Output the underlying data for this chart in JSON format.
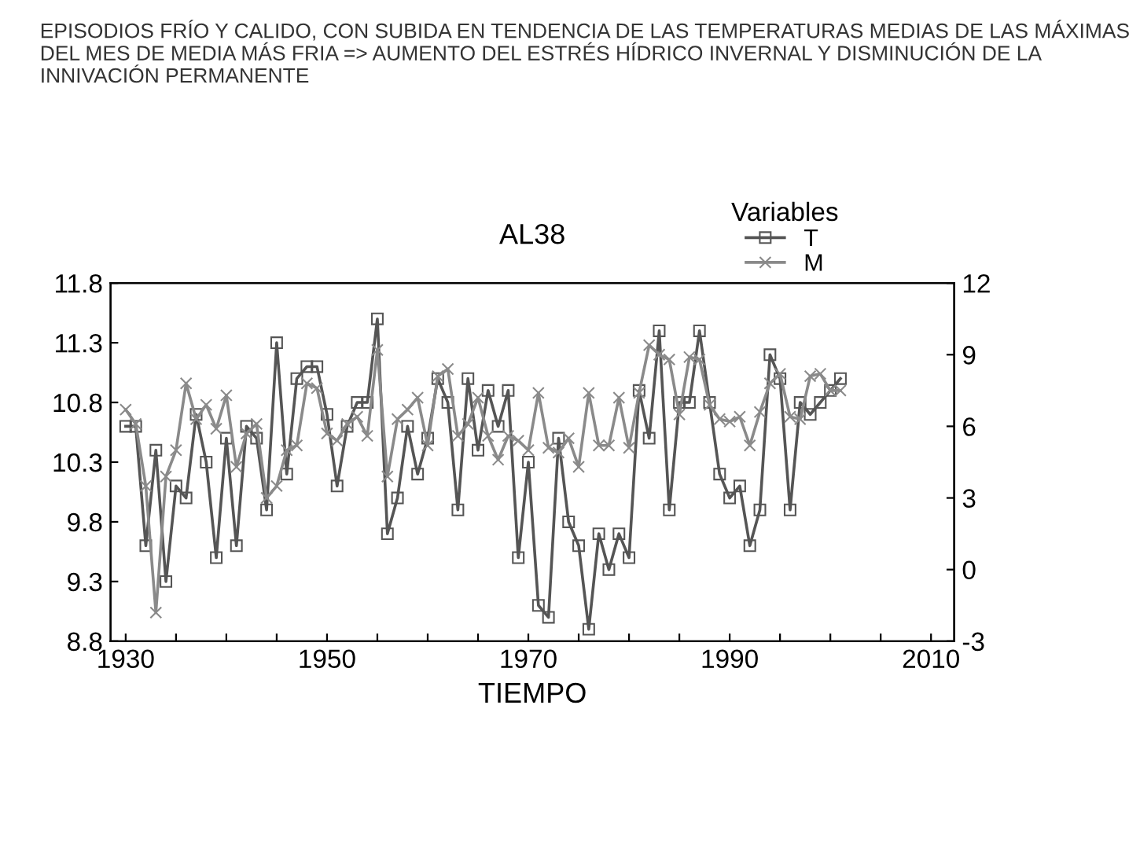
{
  "chart_data": {
    "type": "line",
    "title": "AL38",
    "xlabel": "TIEMPO",
    "legend_title": "Variables",
    "annotations": [
      "EPISODIOS FRÍO Y CALIDO, CON SUBIDA EN TENDENCIA DE LAS TEMPERATURAS MEDIAS DE LAS MÁXIMAS DEL MES DE MEDIA MÁS FRIA => AUMENTO DEL ESTRÉS HÍDRICO INVERNAL Y DISMINUCIÓN DE LA INNIVACIÓN PERMANENTE"
    ],
    "x": [
      1930,
      1931,
      1932,
      1933,
      1934,
      1935,
      1936,
      1937,
      1938,
      1939,
      1940,
      1941,
      1942,
      1943,
      1944,
      1945,
      1946,
      1947,
      1948,
      1949,
      1950,
      1951,
      1952,
      1953,
      1954,
      1955,
      1956,
      1957,
      1958,
      1959,
      1960,
      1961,
      1962,
      1963,
      1964,
      1965,
      1966,
      1967,
      1968,
      1969,
      1970,
      1971,
      1972,
      1973,
      1974,
      1975,
      1976,
      1977,
      1978,
      1979,
      1980,
      1981,
      1982,
      1983,
      1984,
      1985,
      1986,
      1987,
      1988,
      1989,
      1990,
      1991,
      1992,
      1993,
      1994,
      1995,
      1996,
      1997,
      1998,
      1999,
      2000,
      2001
    ],
    "series": [
      {
        "name": "T",
        "color": "#555555",
        "marker": "square",
        "values": [
          10.6,
          10.6,
          9.6,
          10.4,
          9.3,
          10.1,
          10.0,
          10.7,
          10.3,
          9.5,
          10.5,
          9.6,
          10.6,
          10.5,
          9.9,
          11.3,
          10.2,
          11.0,
          11.1,
          11.1,
          10.7,
          10.1,
          10.6,
          10.8,
          10.8,
          11.5,
          9.7,
          10.0,
          10.6,
          10.2,
          10.5,
          11.0,
          10.8,
          9.9,
          11.0,
          10.4,
          10.9,
          10.6,
          10.9,
          9.5,
          10.3,
          9.1,
          9.0,
          10.5,
          9.8,
          9.6,
          8.9,
          9.7,
          9.4,
          9.7,
          9.5,
          10.9,
          10.5,
          11.4,
          9.9,
          10.8,
          10.8,
          11.4,
          10.8,
          10.2,
          10.0,
          10.1,
          9.6,
          9.9,
          11.2,
          11.0,
          9.9,
          10.8,
          10.7,
          10.8,
          10.9,
          11.0
        ]
      },
      {
        "name": "M",
        "color": "#8a8a8a",
        "marker": "cross",
        "axis": "y2",
        "values": [
          6.7,
          6.1,
          3.5,
          -1.8,
          3.9,
          5.0,
          7.8,
          6.3,
          6.9,
          5.9,
          7.3,
          4.3,
          5.7,
          6.1,
          3.0,
          3.5,
          5.0,
          5.2,
          7.8,
          7.6,
          5.7,
          5.4,
          6.1,
          6.4,
          5.6,
          9.2,
          3.9,
          6.3,
          6.7,
          7.2,
          5.2,
          8.1,
          8.4,
          5.6,
          6.1,
          7.2,
          5.6,
          4.6,
          5.6,
          5.4,
          5.0,
          7.4,
          5.1,
          4.9,
          5.5,
          4.3,
          7.4,
          5.2,
          5.2,
          7.2,
          5.1,
          7.4,
          9.4,
          9.0,
          8.8,
          6.5,
          8.9,
          8.8,
          6.9,
          6.3,
          6.2,
          6.4,
          5.2,
          6.6,
          7.8,
          8.2,
          6.4,
          6.3,
          8.1,
          8.2,
          7.5,
          7.5
        ]
      }
    ],
    "xlim": [
      1928.5,
      2012.3
    ],
    "xticks": [
      1930,
      {
        "value": 1935,
        "label": null
      },
      {
        "value": 1940,
        "label": null
      },
      {
        "value": 1945,
        "label": null
      },
      1950,
      {
        "value": 1955,
        "label": null
      },
      {
        "value": 1960,
        "label": null
      },
      {
        "value": 1965,
        "label": null
      },
      1970,
      {
        "value": 1975,
        "label": null
      },
      {
        "value": 1980,
        "label": null
      },
      {
        "value": 1985,
        "label": null
      },
      1990,
      {
        "value": 1995,
        "label": null
      },
      {
        "value": 2000,
        "label": null
      },
      {
        "value": 2005,
        "label": null
      },
      2010
    ],
    "ylim": [
      8.8,
      11.8
    ],
    "yticks": [
      8.8,
      9.3,
      9.8,
      10.3,
      10.8,
      11.3,
      11.8
    ],
    "y2lim": [
      -3,
      12
    ],
    "y2ticks": [
      -3,
      0,
      3,
      6,
      9,
      12
    ],
    "legend": "top right",
    "grid": false,
    "line_style": "solid"
  }
}
